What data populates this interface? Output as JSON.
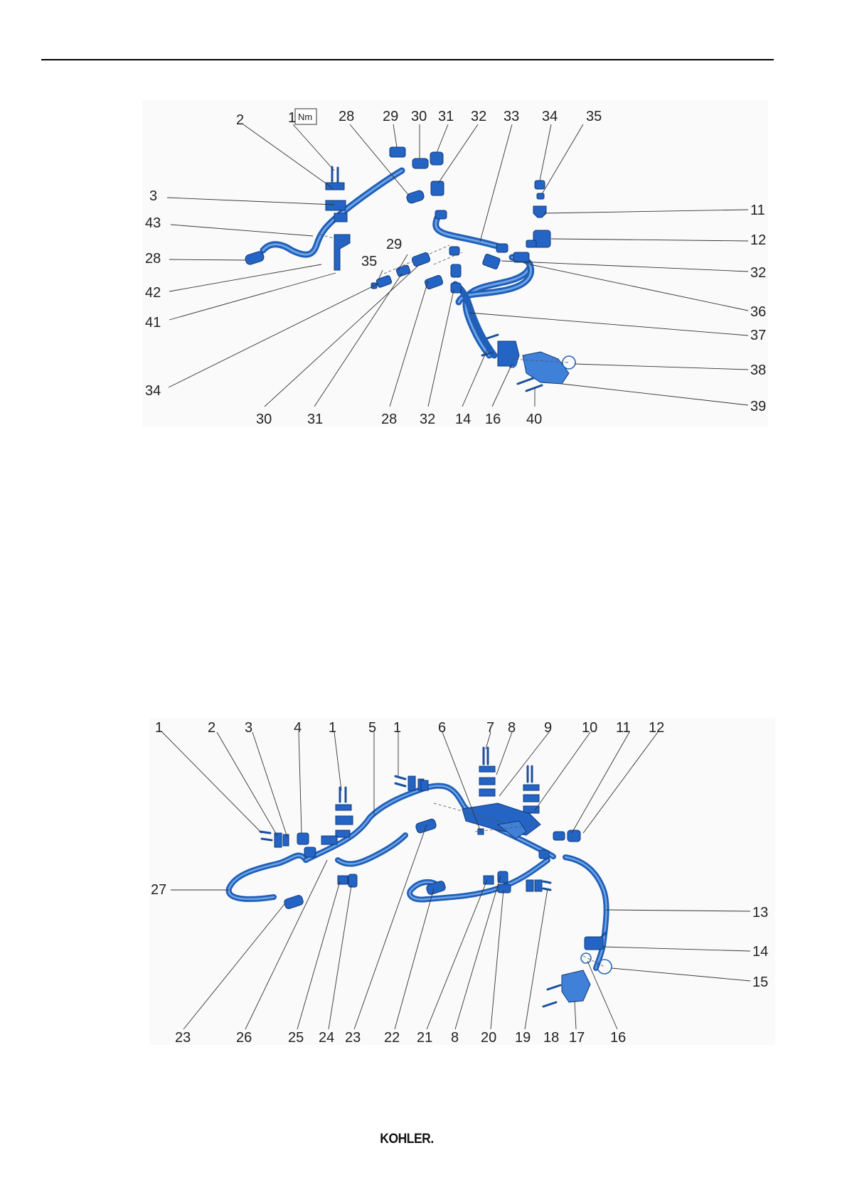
{
  "torque_symbol": "Nm",
  "logo": "KOHLER.",
  "diagram_top": {
    "labels": [
      "2",
      "1",
      "28",
      "29",
      "30",
      "31",
      "32",
      "33",
      "34",
      "35",
      "3",
      "43",
      "28",
      "42",
      "41",
      "29",
      "35",
      "34",
      "11",
      "12",
      "32",
      "36",
      "37",
      "38",
      "39",
      "30",
      "31",
      "28",
      "32",
      "14",
      "16",
      "40"
    ]
  },
  "diagram_bottom": {
    "labels": [
      "1",
      "2",
      "3",
      "4",
      "1",
      "5",
      "1",
      "6",
      "7",
      "8",
      "9",
      "10",
      "11",
      "12",
      "27",
      "13",
      "14",
      "15",
      "23",
      "26",
      "25",
      "24",
      "23",
      "22",
      "21",
      "8",
      "20",
      "19",
      "18",
      "17",
      "16"
    ]
  }
}
